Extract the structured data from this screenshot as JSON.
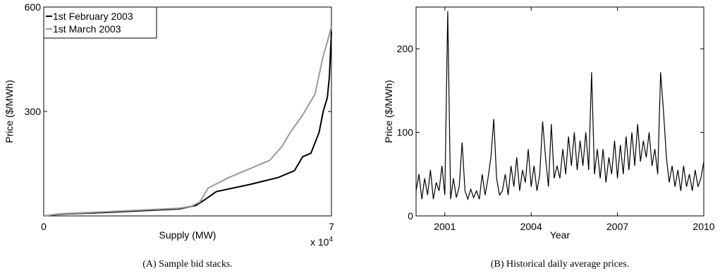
{
  "chart_data": [
    {
      "type": "line",
      "xlabel": "Supply (MW)",
      "ylabel": "Price ($/MWh)",
      "caption": "(A) Sample bid stacks.",
      "axis_multiplier": {
        "base": "x 10",
        "exponent": "4"
      },
      "xlim": [
        0,
        70000
      ],
      "ylim": [
        0,
        600
      ],
      "xticks": [
        0,
        {
          "value": 70000,
          "label": "7"
        }
      ],
      "yticks": [
        300,
        600
      ],
      "legend": "upper left",
      "series": [
        {
          "name": "1st February 2003",
          "color": "#000000",
          "x": [
            0,
            4000,
            15000,
            33000,
            37000,
            39000,
            42000,
            50000,
            57000,
            61000,
            63000,
            65000,
            67000,
            68000,
            69000,
            69500,
            70000
          ],
          "values": [
            0,
            5,
            10,
            20,
            30,
            45,
            70,
            90,
            110,
            130,
            170,
            180,
            240,
            300,
            340,
            400,
            530
          ]
        },
        {
          "name": "1st March 2003",
          "color": "#999999",
          "x": [
            0,
            4000,
            15000,
            33000,
            36000,
            38000,
            40000,
            45000,
            50000,
            55000,
            58000,
            60000,
            63000,
            66000,
            68000,
            69000,
            70000
          ],
          "values": [
            0,
            6,
            12,
            22,
            28,
            40,
            80,
            110,
            135,
            160,
            200,
            240,
            290,
            350,
            460,
            500,
            545
          ]
        }
      ]
    },
    {
      "type": "line",
      "xlabel": "Year",
      "ylabel": "Price ($/MWh)",
      "caption": "(B) Historical daily average prices.",
      "xlim": [
        2000,
        2010
      ],
      "ylim": [
        0,
        250
      ],
      "xticks": [
        2001,
        2004,
        2007,
        2010
      ],
      "yticks": [
        0,
        100,
        200
      ],
      "series": [
        {
          "color": "#000000",
          "x": [
            2000.0,
            2000.1,
            2000.2,
            2000.3,
            2000.4,
            2000.5,
            2000.6,
            2000.7,
            2000.8,
            2000.9,
            2001.0,
            2001.1,
            2001.2,
            2001.3,
            2001.4,
            2001.5,
            2001.6,
            2001.7,
            2001.8,
            2001.9,
            2002.0,
            2002.1,
            2002.2,
            2002.3,
            2002.4,
            2002.5,
            2002.6,
            2002.7,
            2002.8,
            2002.9,
            2003.0,
            2003.1,
            2003.2,
            2003.3,
            2003.4,
            2003.5,
            2003.6,
            2003.7,
            2003.8,
            2003.9,
            2004.0,
            2004.1,
            2004.2,
            2004.3,
            2004.4,
            2004.5,
            2004.6,
            2004.7,
            2004.8,
            2004.9,
            2005.0,
            2005.1,
            2005.2,
            2005.3,
            2005.4,
            2005.5,
            2005.6,
            2005.7,
            2005.8,
            2005.9,
            2006.0,
            2006.1,
            2006.2,
            2006.3,
            2006.4,
            2006.5,
            2006.6,
            2006.7,
            2006.8,
            2006.9,
            2007.0,
            2007.1,
            2007.2,
            2007.3,
            2007.4,
            2007.5,
            2007.6,
            2007.7,
            2007.8,
            2007.9,
            2008.0,
            2008.1,
            2008.2,
            2008.3,
            2008.4,
            2008.5,
            2008.6,
            2008.7,
            2008.8,
            2008.9,
            2009.0,
            2009.1,
            2009.2,
            2009.3,
            2009.4,
            2009.5,
            2009.6,
            2009.7,
            2009.8,
            2009.9,
            2010.0
          ],
          "values": [
            30,
            50,
            20,
            45,
            25,
            55,
            20,
            40,
            30,
            60,
            25,
            245,
            20,
            45,
            22,
            35,
            88,
            30,
            20,
            32,
            22,
            30,
            20,
            50,
            25,
            45,
            70,
            116,
            45,
            25,
            30,
            50,
            25,
            60,
            35,
            70,
            30,
            55,
            40,
            80,
            35,
            60,
            30,
            50,
            113,
            70,
            35,
            110,
            45,
            60,
            45,
            80,
            50,
            95,
            60,
            100,
            55,
            90,
            60,
            100,
            55,
            172,
            50,
            80,
            45,
            80,
            40,
            70,
            50,
            90,
            45,
            85,
            50,
            95,
            55,
            100,
            60,
            110,
            65,
            90,
            70,
            100,
            60,
            80,
            50,
            172,
            125,
            70,
            40,
            60,
            35,
            55,
            30,
            60,
            35,
            50,
            30,
            55,
            35,
            45,
            65
          ]
        }
      ]
    }
  ]
}
